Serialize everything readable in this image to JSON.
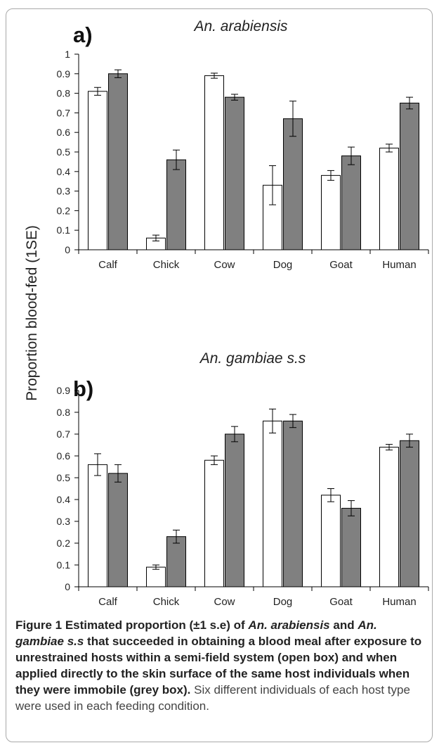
{
  "figure": {
    "ylabel": "Proportion blood-fed (1SE)",
    "colors": {
      "open": "#ffffff",
      "grey": "#808080",
      "stroke": "#000000"
    }
  },
  "caption": {
    "label": "Figure 1",
    "title_parts": [
      {
        "text": " Estimated proportion (±1 s.e) of ",
        "italic": false
      },
      {
        "text": "An. arabiensis",
        "italic": true
      },
      {
        "text": " and ",
        "italic": false
      },
      {
        "text": "An. gambiae s.s",
        "italic": true
      },
      {
        "text": " that succeeded in obtaining a blood meal after exposure to unrestrained hosts within a semi-field system (open box) and when applied directly to the skin surface of the same host individuals when they were immobile (grey box).",
        "italic": false
      }
    ],
    "rest": " Six different individuals of each host type were used in each feeding condition."
  },
  "chart_data": [
    {
      "type": "bar",
      "panel_label": "a)",
      "title": "An. arabiensis",
      "ylabel": "Proportion blood-fed (1SE)",
      "categories": [
        "Calf",
        "Chick",
        "Cow",
        "Dog",
        "Goat",
        "Human"
      ],
      "ylim": [
        0,
        1
      ],
      "yticks": [
        "0",
        "0.1",
        "0.2",
        "0.3",
        "0.4",
        "0.5",
        "0.6",
        "0.7",
        "0.8",
        "0.9",
        "1"
      ],
      "series": [
        {
          "values": [
            0.81,
            0.06,
            0.89,
            0.33,
            0.38,
            0.52
          ],
          "errors": [
            0.02,
            0.015,
            0.013,
            0.1,
            0.025,
            0.02
          ]
        },
        {
          "values": [
            0.9,
            0.46,
            0.78,
            0.67,
            0.48,
            0.75
          ],
          "errors": [
            0.02,
            0.05,
            0.015,
            0.09,
            0.045,
            0.03
          ]
        }
      ],
      "grid": false,
      "legend": "none"
    },
    {
      "type": "bar",
      "panel_label": "b)",
      "title": "An. gambiae s.s",
      "ylabel": "Proportion blood-fed (1SE)",
      "categories": [
        "Calf",
        "Chick",
        "Cow",
        "Dog",
        "Goat",
        "Human"
      ],
      "ylim": [
        0,
        0.9
      ],
      "yticks": [
        "0",
        "0.1",
        "0.2",
        "0.3",
        "0.4",
        "0.5",
        "0.6",
        "0.7",
        "0.8",
        "0.9"
      ],
      "series": [
        {
          "values": [
            0.56,
            0.09,
            0.58,
            0.76,
            0.42,
            0.64
          ],
          "errors": [
            0.05,
            0.01,
            0.02,
            0.055,
            0.03,
            0.013
          ]
        },
        {
          "values": [
            0.52,
            0.23,
            0.7,
            0.76,
            0.36,
            0.67
          ],
          "errors": [
            0.04,
            0.03,
            0.035,
            0.03,
            0.035,
            0.03
          ]
        }
      ],
      "grid": false,
      "legend": "none"
    }
  ]
}
